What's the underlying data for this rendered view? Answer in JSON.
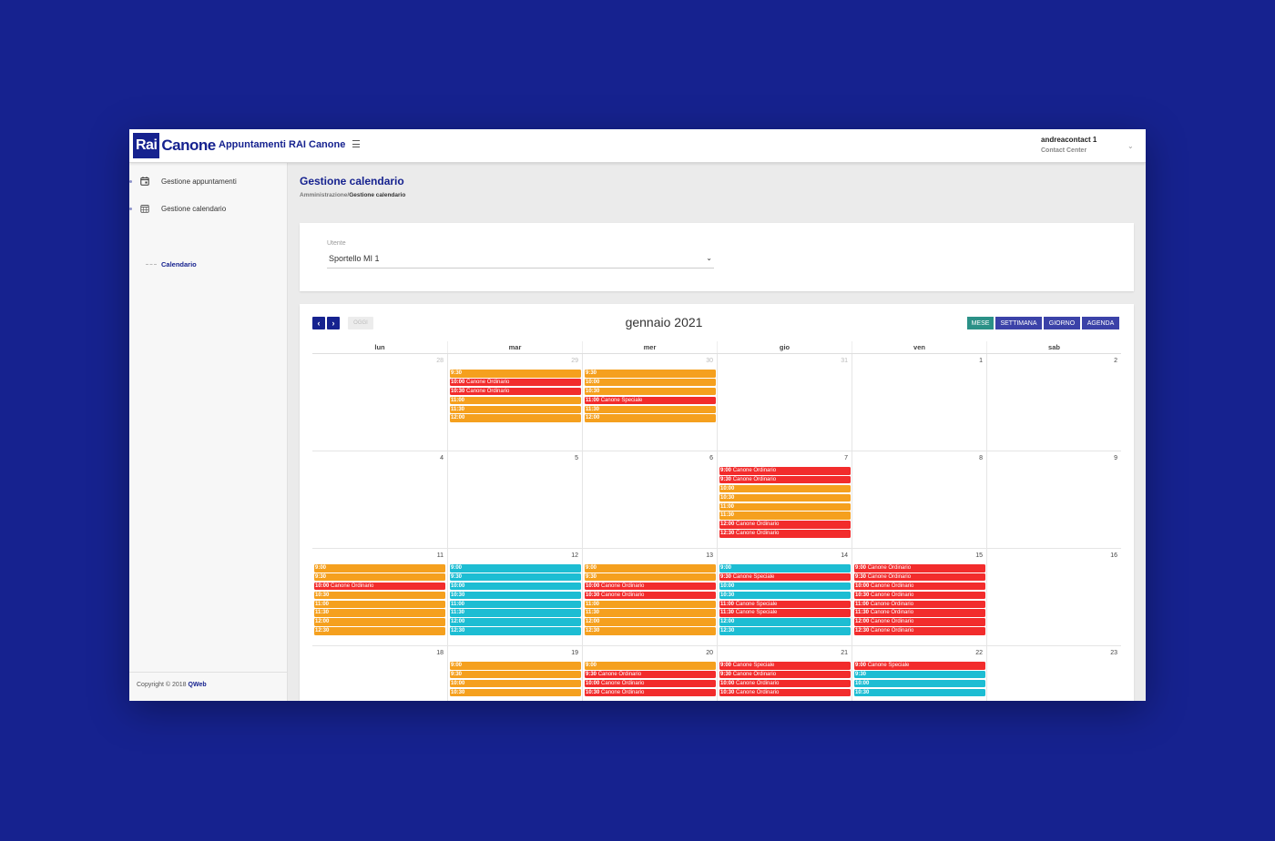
{
  "header": {
    "logo_rai": "Rai",
    "logo_canone": "Canone",
    "app_title": "Appuntamenti RAI Canone",
    "user_name": "andreacontact 1",
    "user_role": "Contact Center"
  },
  "sidebar": {
    "items": [
      {
        "label": "Gestione appuntamenti",
        "icon": "calendar-day-icon"
      },
      {
        "label": "Gestione calendario",
        "icon": "calendar-grid-icon"
      }
    ],
    "sub_item": "Calendario",
    "footer_text": "Copyright © 2018 ",
    "footer_brand": "QWeb"
  },
  "page": {
    "title": "Gestione calendario",
    "breadcrumb_parent": "Amministrazione/",
    "breadcrumb_current": "Gestione calendario"
  },
  "user_select": {
    "label": "Utente",
    "value": "Sportello MI 1"
  },
  "calendar": {
    "prev_label": "‹",
    "next_label": "›",
    "today_label": "OGGI",
    "month_title": "gennaio 2021",
    "views": [
      "MESE",
      "SETTIMANA",
      "GIORNO",
      "AGENDA"
    ],
    "active_view": "MESE",
    "weekdays": [
      "lun",
      "mar",
      "mer",
      "gio",
      "ven",
      "sab"
    ],
    "colors": {
      "o": "#f5a01e",
      "r": "#f22c2c",
      "c": "#1dbdd3"
    },
    "weeks": [
      [
        {
          "num": "28",
          "other": true,
          "events": []
        },
        {
          "num": "29",
          "other": true,
          "events": [
            {
              "t": "9:30",
              "l": "",
              "c": "o"
            },
            {
              "t": "10:00",
              "l": "Canone Ordinario",
              "c": "r"
            },
            {
              "t": "10:30",
              "l": "Canone Ordinario",
              "c": "r"
            },
            {
              "t": "11:00",
              "l": "",
              "c": "o"
            },
            {
              "t": "11:30",
              "l": "",
              "c": "o"
            },
            {
              "t": "12:00",
              "l": "",
              "c": "o"
            }
          ]
        },
        {
          "num": "30",
          "other": true,
          "events": [
            {
              "t": "9:30",
              "l": "",
              "c": "o"
            },
            {
              "t": "10:00",
              "l": "",
              "c": "o"
            },
            {
              "t": "10:30",
              "l": "",
              "c": "o"
            },
            {
              "t": "11:00",
              "l": "Canone Speciale",
              "c": "r"
            },
            {
              "t": "11:30",
              "l": "",
              "c": "o"
            },
            {
              "t": "12:00",
              "l": "",
              "c": "o"
            }
          ]
        },
        {
          "num": "31",
          "other": true,
          "events": []
        },
        {
          "num": "1",
          "other": false,
          "events": []
        },
        {
          "num": "2",
          "other": false,
          "events": []
        }
      ],
      [
        {
          "num": "4",
          "other": false,
          "events": []
        },
        {
          "num": "5",
          "other": false,
          "events": []
        },
        {
          "num": "6",
          "other": false,
          "events": []
        },
        {
          "num": "7",
          "other": false,
          "events": [
            {
              "t": "9:00",
              "l": "Canone Ordinario",
              "c": "r"
            },
            {
              "t": "9:30",
              "l": "Canone Ordinario",
              "c": "r"
            },
            {
              "t": "10:00",
              "l": "",
              "c": "o"
            },
            {
              "t": "10:30",
              "l": "",
              "c": "o"
            },
            {
              "t": "11:00",
              "l": "",
              "c": "o"
            },
            {
              "t": "11:30",
              "l": "",
              "c": "o"
            },
            {
              "t": "12:00",
              "l": "Canone Ordinario",
              "c": "r"
            },
            {
              "t": "12:30",
              "l": "Canone Ordinario",
              "c": "r"
            }
          ]
        },
        {
          "num": "8",
          "other": false,
          "events": []
        },
        {
          "num": "9",
          "other": false,
          "events": []
        }
      ],
      [
        {
          "num": "11",
          "other": false,
          "events": [
            {
              "t": "9:00",
              "l": "",
              "c": "o"
            },
            {
              "t": "9:30",
              "l": "",
              "c": "o"
            },
            {
              "t": "10:00",
              "l": "Canone Ordinario",
              "c": "r"
            },
            {
              "t": "10:30",
              "l": "",
              "c": "o"
            },
            {
              "t": "11:00",
              "l": "",
              "c": "o"
            },
            {
              "t": "11:30",
              "l": "",
              "c": "o"
            },
            {
              "t": "12:00",
              "l": "",
              "c": "o"
            },
            {
              "t": "12:30",
              "l": "",
              "c": "o"
            }
          ]
        },
        {
          "num": "12",
          "other": false,
          "events": [
            {
              "t": "9:00",
              "l": "",
              "c": "c"
            },
            {
              "t": "9:30",
              "l": "",
              "c": "c"
            },
            {
              "t": "10:00",
              "l": "",
              "c": "c"
            },
            {
              "t": "10:30",
              "l": "",
              "c": "c"
            },
            {
              "t": "11:00",
              "l": "",
              "c": "c"
            },
            {
              "t": "11:30",
              "l": "",
              "c": "c"
            },
            {
              "t": "12:00",
              "l": "",
              "c": "c"
            },
            {
              "t": "12:30",
              "l": "",
              "c": "c"
            }
          ]
        },
        {
          "num": "13",
          "other": false,
          "events": [
            {
              "t": "9:00",
              "l": "",
              "c": "o"
            },
            {
              "t": "9:30",
              "l": "",
              "c": "o"
            },
            {
              "t": "10:00",
              "l": "Canone Ordinario",
              "c": "r"
            },
            {
              "t": "10:30",
              "l": "Canone Ordinario",
              "c": "r"
            },
            {
              "t": "11:00",
              "l": "",
              "c": "o"
            },
            {
              "t": "11:30",
              "l": "",
              "c": "o"
            },
            {
              "t": "12:00",
              "l": "",
              "c": "o"
            },
            {
              "t": "12:30",
              "l": "",
              "c": "o"
            }
          ]
        },
        {
          "num": "14",
          "other": false,
          "events": [
            {
              "t": "9:00",
              "l": "",
              "c": "c"
            },
            {
              "t": "9:30",
              "l": "Canone Speciale",
              "c": "r"
            },
            {
              "t": "10:00",
              "l": "",
              "c": "c"
            },
            {
              "t": "10:30",
              "l": "",
              "c": "c"
            },
            {
              "t": "11:00",
              "l": "Canone Speciale",
              "c": "r"
            },
            {
              "t": "11:30",
              "l": "Canone Speciale",
              "c": "r"
            },
            {
              "t": "12:00",
              "l": "",
              "c": "c"
            },
            {
              "t": "12:30",
              "l": "",
              "c": "c"
            }
          ]
        },
        {
          "num": "15",
          "other": false,
          "events": [
            {
              "t": "9:00",
              "l": "Canone Ordinario",
              "c": "r"
            },
            {
              "t": "9:30",
              "l": "Canone Ordinario",
              "c": "r"
            },
            {
              "t": "10:00",
              "l": "Canone Ordinario",
              "c": "r"
            },
            {
              "t": "10:30",
              "l": "Canone Ordinario",
              "c": "r"
            },
            {
              "t": "11:00",
              "l": "Canone Ordinario",
              "c": "r"
            },
            {
              "t": "11:30",
              "l": "Canone Ordinario",
              "c": "r"
            },
            {
              "t": "12:00",
              "l": "Canone Ordinario",
              "c": "r"
            },
            {
              "t": "12:30",
              "l": "Canone Ordinario",
              "c": "r"
            }
          ]
        },
        {
          "num": "16",
          "other": false,
          "events": []
        }
      ],
      [
        {
          "num": "18",
          "other": false,
          "events": []
        },
        {
          "num": "19",
          "other": false,
          "events": [
            {
              "t": "9:00",
              "l": "",
              "c": "o"
            },
            {
              "t": "9:30",
              "l": "",
              "c": "o"
            },
            {
              "t": "10:00",
              "l": "",
              "c": "o"
            },
            {
              "t": "10:30",
              "l": "",
              "c": "o"
            }
          ]
        },
        {
          "num": "20",
          "other": false,
          "events": [
            {
              "t": "9:00",
              "l": "",
              "c": "o"
            },
            {
              "t": "9:30",
              "l": "Canone Ordinario",
              "c": "r"
            },
            {
              "t": "10:00",
              "l": "Canone Ordinario",
              "c": "r"
            },
            {
              "t": "10:30",
              "l": "Canone Ordinario",
              "c": "r"
            }
          ]
        },
        {
          "num": "21",
          "other": false,
          "events": [
            {
              "t": "9:00",
              "l": "Canone Speciale",
              "c": "r"
            },
            {
              "t": "9:30",
              "l": "Canone Ordinario",
              "c": "r"
            },
            {
              "t": "10:00",
              "l": "Canone Ordinario",
              "c": "r"
            },
            {
              "t": "10:30",
              "l": "Canone Ordinario",
              "c": "r"
            }
          ]
        },
        {
          "num": "22",
          "other": false,
          "events": [
            {
              "t": "9:00",
              "l": "Canone Speciale",
              "c": "r"
            },
            {
              "t": "9:30",
              "l": "",
              "c": "c"
            },
            {
              "t": "10:00",
              "l": "",
              "c": "c"
            },
            {
              "t": "10:30",
              "l": "",
              "c": "c"
            }
          ]
        },
        {
          "num": "23",
          "other": false,
          "events": []
        }
      ]
    ]
  }
}
